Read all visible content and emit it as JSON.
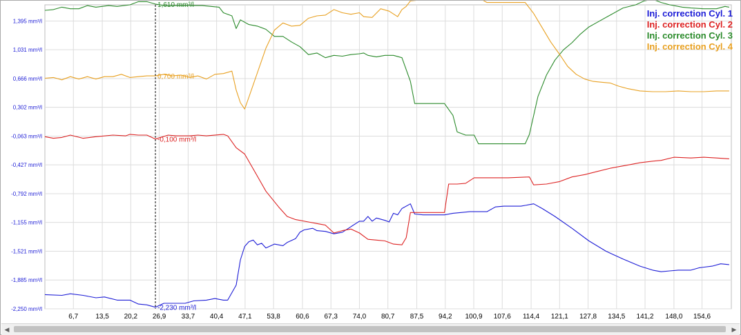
{
  "chart_data": {
    "type": "line",
    "xlim": [
      0,
      161.5
    ],
    "ylim": [
      -2.25,
      1.6
    ],
    "x_ticks": [
      "6,7",
      "13,5",
      "20,2",
      "26,9",
      "33,7",
      "40,4",
      "47,1",
      "53,8",
      "60,6",
      "67,3",
      "74,0",
      "80,7",
      "87,5",
      "94,2",
      "100,9",
      "107,6",
      "114,4",
      "121,1",
      "127,8",
      "134,5",
      "141,2",
      "148,0",
      "154,6"
    ],
    "y_ticks": [
      "1,395 mm³/l",
      "1,031 mm³/l",
      "0,666 mm³/l",
      "0,302 mm³/l",
      "-0,063 mm³/l",
      "-0,427 mm³/l",
      "-0,792 mm³/l",
      "-1,155 mm³/l",
      "-1,521 mm³/l",
      "-1,885 mm³/l",
      "-2,250 mm³/l"
    ],
    "grid": true,
    "legend_position": "top-right",
    "cursor": {
      "x": 26.0,
      "labels": [
        {
          "text": "1,610 mm³/l",
          "value": 1.61,
          "color": "#2a8a2a"
        },
        {
          "text": "0,700 mm³/l",
          "value": 0.7,
          "color": "#e8a020"
        },
        {
          "text": "-0,100 mm³/l",
          "value": -0.1,
          "color": "#dd2222"
        },
        {
          "text": "-2,230 mm³/l",
          "value": -2.23,
          "color": "#1c1cd6"
        }
      ]
    },
    "series": [
      {
        "name": "Inj. correction Cyl. 1",
        "color": "#1c1cd6",
        "points": [
          [
            0,
            -2.07
          ],
          [
            4,
            -2.08
          ],
          [
            6,
            -2.06
          ],
          [
            9,
            -2.08
          ],
          [
            12,
            -2.11
          ],
          [
            14,
            -2.1
          ],
          [
            17,
            -2.14
          ],
          [
            20,
            -2.14
          ],
          [
            22,
            -2.19
          ],
          [
            24,
            -2.2
          ],
          [
            26,
            -2.23
          ],
          [
            28,
            -2.18
          ],
          [
            31,
            -2.18
          ],
          [
            33,
            -2.18
          ],
          [
            35,
            -2.15
          ],
          [
            38,
            -2.14
          ],
          [
            40,
            -2.12
          ],
          [
            42,
            -2.14
          ],
          [
            43,
            -2.14
          ],
          [
            45,
            -1.95
          ],
          [
            46,
            -1.63
          ],
          [
            47,
            -1.46
          ],
          [
            48,
            -1.4
          ],
          [
            49,
            -1.38
          ],
          [
            50,
            -1.44
          ],
          [
            51,
            -1.42
          ],
          [
            52,
            -1.48
          ],
          [
            54,
            -1.43
          ],
          [
            56,
            -1.45
          ],
          [
            57,
            -1.41
          ],
          [
            59,
            -1.36
          ],
          [
            60,
            -1.28
          ],
          [
            61,
            -1.25
          ],
          [
            63,
            -1.23
          ],
          [
            64,
            -1.26
          ],
          [
            66,
            -1.27
          ],
          [
            68,
            -1.3
          ],
          [
            70,
            -1.28
          ],
          [
            72,
            -1.21
          ],
          [
            74,
            -1.14
          ],
          [
            75,
            -1.14
          ],
          [
            76,
            -1.08
          ],
          [
            77,
            -1.14
          ],
          [
            78,
            -1.1
          ],
          [
            80,
            -1.13
          ],
          [
            81,
            -1.15
          ],
          [
            82,
            -1.04
          ],
          [
            83,
            -1.06
          ],
          [
            84,
            -0.98
          ],
          [
            86,
            -0.92
          ],
          [
            87,
            -1.05
          ],
          [
            89,
            -1.06
          ],
          [
            94,
            -1.06
          ],
          [
            96,
            -1.04
          ],
          [
            100,
            -1.02
          ],
          [
            104,
            -1.02
          ],
          [
            106,
            -0.96
          ],
          [
            108,
            -0.95
          ],
          [
            112,
            -0.95
          ],
          [
            115,
            -0.92
          ],
          [
            117,
            -0.98
          ],
          [
            120,
            -1.08
          ],
          [
            124,
            -1.23
          ],
          [
            128,
            -1.39
          ],
          [
            132,
            -1.52
          ],
          [
            136,
            -1.62
          ],
          [
            140,
            -1.71
          ],
          [
            143,
            -1.76
          ],
          [
            145,
            -1.78
          ],
          [
            147,
            -1.77
          ],
          [
            149,
            -1.76
          ],
          [
            152,
            -1.76
          ],
          [
            154,
            -1.73
          ],
          [
            157,
            -1.71
          ],
          [
            159,
            -1.68
          ],
          [
            161,
            -1.69
          ]
        ]
      },
      {
        "name": "Inj. correction Cyl. 2",
        "color": "#dd2222",
        "points": [
          [
            0,
            -0.07
          ],
          [
            2,
            -0.09
          ],
          [
            4,
            -0.08
          ],
          [
            6,
            -0.05
          ],
          [
            9,
            -0.09
          ],
          [
            12,
            -0.07
          ],
          [
            16,
            -0.05
          ],
          [
            19,
            -0.06
          ],
          [
            20,
            -0.04
          ],
          [
            22,
            -0.05
          ],
          [
            24,
            -0.05
          ],
          [
            26,
            -0.1
          ],
          [
            29,
            -0.05
          ],
          [
            31,
            -0.06
          ],
          [
            34,
            -0.06
          ],
          [
            36,
            -0.05
          ],
          [
            38,
            -0.06
          ],
          [
            42,
            -0.04
          ],
          [
            43,
            -0.06
          ],
          [
            45,
            -0.21
          ],
          [
            47,
            -0.29
          ],
          [
            50,
            -0.57
          ],
          [
            52,
            -0.76
          ],
          [
            55,
            -0.96
          ],
          [
            57,
            -1.08
          ],
          [
            59,
            -1.12
          ],
          [
            62,
            -1.15
          ],
          [
            64,
            -1.17
          ],
          [
            66,
            -1.19
          ],
          [
            68,
            -1.29
          ],
          [
            70,
            -1.26
          ],
          [
            72,
            -1.24
          ],
          [
            74,
            -1.29
          ],
          [
            76,
            -1.37
          ],
          [
            78,
            -1.38
          ],
          [
            80,
            -1.39
          ],
          [
            82,
            -1.43
          ],
          [
            84,
            -1.44
          ],
          [
            85,
            -1.35
          ],
          [
            86,
            -1.03
          ],
          [
            88,
            -1.03
          ],
          [
            94,
            -1.03
          ],
          [
            95,
            -0.67
          ],
          [
            97,
            -0.67
          ],
          [
            99,
            -0.66
          ],
          [
            101,
            -0.59
          ],
          [
            103,
            -0.59
          ],
          [
            106,
            -0.59
          ],
          [
            109,
            -0.59
          ],
          [
            114,
            -0.58
          ],
          [
            115,
            -0.68
          ],
          [
            118,
            -0.67
          ],
          [
            121,
            -0.64
          ],
          [
            124,
            -0.58
          ],
          [
            127,
            -0.55
          ],
          [
            130,
            -0.51
          ],
          [
            133,
            -0.47
          ],
          [
            136,
            -0.44
          ],
          [
            138,
            -0.42
          ],
          [
            140,
            -0.4
          ],
          [
            143,
            -0.38
          ],
          [
            145,
            -0.37
          ],
          [
            148,
            -0.33
          ],
          [
            152,
            -0.34
          ],
          [
            155,
            -0.33
          ],
          [
            158,
            -0.34
          ],
          [
            161,
            -0.35
          ]
        ]
      },
      {
        "name": "Inj. correction Cyl. 3",
        "color": "#2a8a2a",
        "points": [
          [
            0,
            1.53
          ],
          [
            2,
            1.54
          ],
          [
            4,
            1.57
          ],
          [
            6,
            1.55
          ],
          [
            8,
            1.55
          ],
          [
            10,
            1.59
          ],
          [
            12,
            1.57
          ],
          [
            15,
            1.59
          ],
          [
            17,
            1.58
          ],
          [
            20,
            1.6
          ],
          [
            22,
            1.64
          ],
          [
            24,
            1.64
          ],
          [
            26,
            1.61
          ],
          [
            28,
            1.59
          ],
          [
            33,
            1.59
          ],
          [
            37,
            1.59
          ],
          [
            41,
            1.57
          ],
          [
            42,
            1.5
          ],
          [
            44,
            1.46
          ],
          [
            45,
            1.3
          ],
          [
            46,
            1.41
          ],
          [
            48,
            1.35
          ],
          [
            50,
            1.33
          ],
          [
            52,
            1.29
          ],
          [
            54,
            1.2
          ],
          [
            56,
            1.2
          ],
          [
            58,
            1.13
          ],
          [
            60,
            1.07
          ],
          [
            62,
            0.97
          ],
          [
            64,
            0.99
          ],
          [
            66,
            0.93
          ],
          [
            68,
            0.96
          ],
          [
            70,
            0.95
          ],
          [
            72,
            0.97
          ],
          [
            74,
            0.98
          ],
          [
            75,
            0.99
          ],
          [
            76,
            0.96
          ],
          [
            78,
            0.94
          ],
          [
            80,
            0.96
          ],
          [
            82,
            0.96
          ],
          [
            84,
            0.93
          ],
          [
            86,
            0.63
          ],
          [
            87,
            0.35
          ],
          [
            89,
            0.35
          ],
          [
            92,
            0.35
          ],
          [
            94,
            0.35
          ],
          [
            96,
            0.2
          ],
          [
            97,
            -0.01
          ],
          [
            99,
            -0.05
          ],
          [
            101,
            -0.05
          ],
          [
            102,
            -0.16
          ],
          [
            104,
            -0.16
          ],
          [
            113,
            -0.16
          ],
          [
            114,
            -0.04
          ],
          [
            116,
            0.44
          ],
          [
            118,
            0.71
          ],
          [
            120,
            0.9
          ],
          [
            122,
            1.03
          ],
          [
            124,
            1.12
          ],
          [
            126,
            1.23
          ],
          [
            128,
            1.32
          ],
          [
            130,
            1.38
          ],
          [
            133,
            1.47
          ],
          [
            136,
            1.56
          ],
          [
            139,
            1.6
          ],
          [
            141,
            1.65
          ],
          [
            143,
            1.67
          ],
          [
            145,
            1.63
          ],
          [
            147,
            1.6
          ],
          [
            150,
            1.57
          ],
          [
            152,
            1.56
          ],
          [
            155,
            1.55
          ],
          [
            158,
            1.55
          ],
          [
            160,
            1.58
          ],
          [
            161,
            1.57
          ]
        ]
      },
      {
        "name": "Inj. correction Cyl. 4",
        "color": "#e8a020",
        "points": [
          [
            0,
            0.67
          ],
          [
            2,
            0.68
          ],
          [
            4,
            0.65
          ],
          [
            6,
            0.69
          ],
          [
            8,
            0.66
          ],
          [
            10,
            0.69
          ],
          [
            12,
            0.66
          ],
          [
            14,
            0.69
          ],
          [
            16,
            0.69
          ],
          [
            18,
            0.72
          ],
          [
            20,
            0.68
          ],
          [
            22,
            0.69
          ],
          [
            24,
            0.7
          ],
          [
            26,
            0.7
          ],
          [
            28,
            0.72
          ],
          [
            30,
            0.7
          ],
          [
            32,
            0.71
          ],
          [
            34,
            0.68
          ],
          [
            36,
            0.7
          ],
          [
            38,
            0.66
          ],
          [
            40,
            0.72
          ],
          [
            42,
            0.73
          ],
          [
            44,
            0.76
          ],
          [
            45,
            0.52
          ],
          [
            46,
            0.36
          ],
          [
            47,
            0.28
          ],
          [
            48,
            0.43
          ],
          [
            50,
            0.74
          ],
          [
            52,
            1.05
          ],
          [
            54,
            1.28
          ],
          [
            56,
            1.37
          ],
          [
            58,
            1.33
          ],
          [
            60,
            1.34
          ],
          [
            62,
            1.43
          ],
          [
            64,
            1.46
          ],
          [
            66,
            1.47
          ],
          [
            68,
            1.54
          ],
          [
            70,
            1.5
          ],
          [
            72,
            1.48
          ],
          [
            74,
            1.5
          ],
          [
            75,
            1.45
          ],
          [
            77,
            1.44
          ],
          [
            79,
            1.55
          ],
          [
            81,
            1.52
          ],
          [
            83,
            1.45
          ],
          [
            84,
            1.54
          ],
          [
            85,
            1.58
          ],
          [
            86,
            1.65
          ],
          [
            88,
            1.66
          ],
          [
            94,
            1.66
          ],
          [
            96,
            1.7
          ],
          [
            98,
            1.7
          ],
          [
            102,
            1.69
          ],
          [
            104,
            1.63
          ],
          [
            109,
            1.63
          ],
          [
            113,
            1.63
          ],
          [
            115,
            1.49
          ],
          [
            117,
            1.31
          ],
          [
            119,
            1.13
          ],
          [
            121,
            0.98
          ],
          [
            123,
            0.82
          ],
          [
            125,
            0.72
          ],
          [
            127,
            0.66
          ],
          [
            129,
            0.63
          ],
          [
            131,
            0.62
          ],
          [
            133,
            0.61
          ],
          [
            135,
            0.57
          ],
          [
            137,
            0.54
          ],
          [
            140,
            0.51
          ],
          [
            143,
            0.5
          ],
          [
            146,
            0.5
          ],
          [
            149,
            0.51
          ],
          [
            152,
            0.5
          ],
          [
            155,
            0.5
          ],
          [
            158,
            0.51
          ],
          [
            161,
            0.51
          ]
        ]
      }
    ]
  },
  "scrollbar": {
    "left_arrow": "◀",
    "right_arrow": "▶"
  }
}
